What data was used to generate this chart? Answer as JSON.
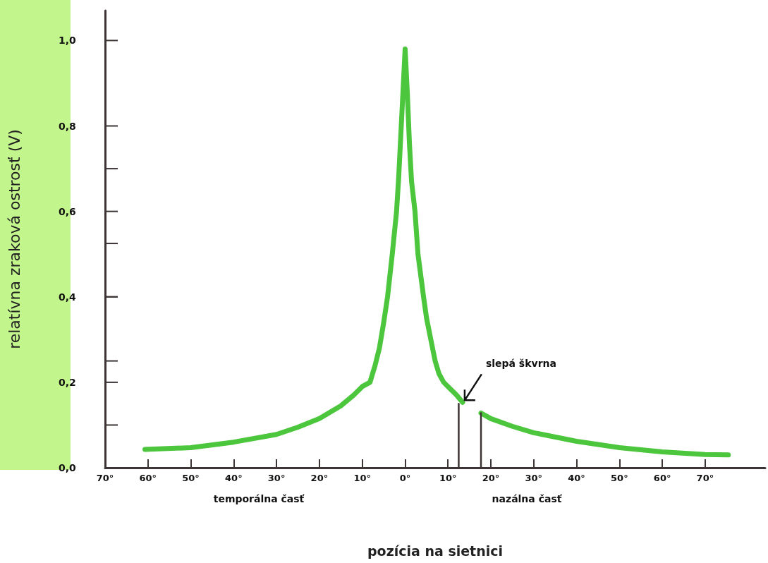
{
  "chart_data": {
    "type": "line",
    "xlabel": "pozícia na sietnici",
    "ylabel": "relatívna zraková ostrosť (V)",
    "xlim": [
      -70,
      84
    ],
    "ylim": [
      0,
      1.07
    ],
    "xticks": [
      {
        "value": -70,
        "label": "70°"
      },
      {
        "value": -60,
        "label": "60°"
      },
      {
        "value": -50,
        "label": "50°"
      },
      {
        "value": -40,
        "label": "40°"
      },
      {
        "value": -30,
        "label": "30°"
      },
      {
        "value": -20,
        "label": "20°"
      },
      {
        "value": -10,
        "label": "10°"
      },
      {
        "value": 0,
        "label": "0°"
      },
      {
        "value": 10,
        "label": "10°"
      },
      {
        "value": 20,
        "label": "20°"
      },
      {
        "value": 30,
        "label": "30°"
      },
      {
        "value": 40,
        "label": "40°"
      },
      {
        "value": 50,
        "label": "50°"
      },
      {
        "value": 60,
        "label": "60°"
      },
      {
        "value": 70,
        "label": "70°"
      }
    ],
    "yticks": [
      {
        "value": 0,
        "label": "0,0"
      },
      {
        "value": 0.2,
        "label": "0,2"
      },
      {
        "value": 0.4,
        "label": "0,4"
      },
      {
        "value": 0.6,
        "label": "0,6"
      },
      {
        "value": 0.8,
        "label": "0,8"
      },
      {
        "value": 1.0,
        "label": "1,0"
      }
    ],
    "grid": false,
    "marker": "none",
    "line_style": "solid",
    "series": [
      {
        "color": "#4cc63c",
        "x": [
          -60.7,
          -50,
          -40,
          -30,
          -25,
          -20,
          -15,
          -12,
          -10,
          -8.2,
          -7,
          -6,
          -5,
          -4.1,
          -3,
          -2,
          -1.5,
          -1,
          -0.5,
          0,
          0.5,
          1,
          1.5,
          2.3,
          3,
          4.3,
          5,
          6,
          7,
          7.9,
          9,
          10,
          12,
          13.4
        ],
        "values": [
          0.043,
          0.047,
          0.06,
          0.078,
          0.095,
          0.115,
          0.145,
          0.17,
          0.19,
          0.2,
          0.24,
          0.28,
          0.34,
          0.4,
          0.5,
          0.6,
          0.68,
          0.78,
          0.88,
          0.98,
          0.88,
          0.76,
          0.67,
          0.6,
          0.5,
          0.4,
          0.35,
          0.3,
          0.25,
          0.22,
          0.2,
          0.19,
          0.17,
          0.153
        ]
      },
      {
        "color": "#4cc63c",
        "x": [
          17.7,
          20,
          25,
          30,
          40,
          50,
          60,
          70,
          75.4
        ],
        "values": [
          0.128,
          0.115,
          0.097,
          0.082,
          0.062,
          0.047,
          0.037,
          0.031,
          0.03
        ]
      },
      {
        "color": "#3d3535",
        "x": [
          12.5,
          12.5,
          null,
          17.7,
          17.7
        ],
        "values": [
          0.15,
          0,
          null,
          0,
          0.128
        ]
      }
    ],
    "annotations": [
      {
        "text": "slepá škvrna",
        "x": 13.4,
        "y": 0.153
      },
      "temporálna časť",
      "nazálna časť"
    ]
  }
}
